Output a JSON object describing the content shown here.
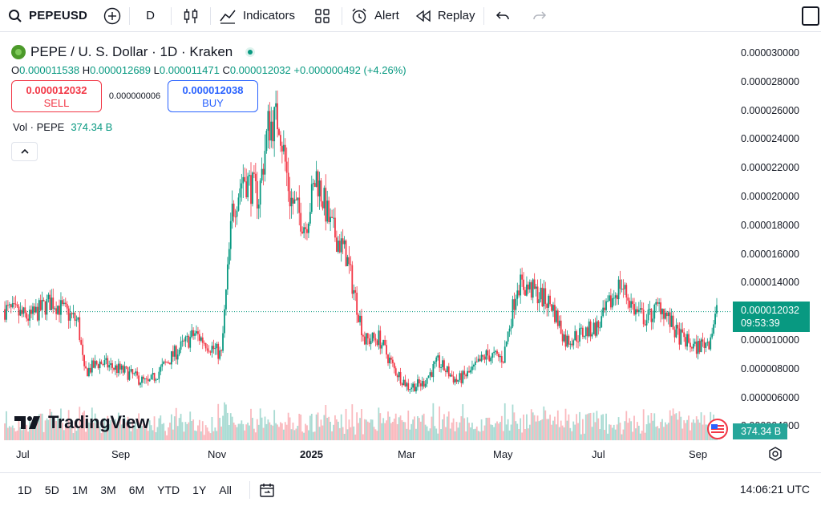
{
  "toolbar": {
    "symbol": "PEPEUSD",
    "interval": "D",
    "indicators_label": "Indicators",
    "alert_label": "Alert",
    "replay_label": "Replay"
  },
  "legend": {
    "title": "PEPE / U. S. Dollar · 1D · Kraken",
    "open_key": "O",
    "open": "0.000011538",
    "high_key": "H",
    "high": "0.000012689",
    "low_key": "L",
    "low": "0.000011471",
    "close_key": "C",
    "close": "0.000012032",
    "change": "+0.000000492 (+4.26%)"
  },
  "trade": {
    "sell_price": "0.000012032",
    "sell_label": "SELL",
    "spread": "0.000000006",
    "buy_price": "0.000012038",
    "buy_label": "BUY"
  },
  "volume": {
    "label": "Vol · PEPE",
    "value": "374.34 B"
  },
  "branding": "TradingView",
  "price_axis": {
    "ticks": [
      "0.000030000",
      "0.000028000",
      "0.000026000",
      "0.000024000",
      "0.000022000",
      "0.000020000",
      "0.000018000",
      "0.000016000",
      "0.000014000",
      "0.000010000",
      "0.000008000",
      "0.000006000",
      "0.000004000"
    ],
    "current_price": "0.000012032",
    "countdown": "09:53:39",
    "volume_tag": "374.34 B"
  },
  "time_axis": {
    "labels": [
      "Jul",
      "Sep",
      "Nov",
      "2025",
      "Mar",
      "May",
      "Jul",
      "Sep"
    ]
  },
  "bottom_bar": {
    "ranges": [
      "1D",
      "5D",
      "1M",
      "3M",
      "6M",
      "YTD",
      "1Y",
      "All"
    ],
    "clock": "14:06:21 UTC"
  },
  "colors": {
    "up": "#089981",
    "down": "#f23645",
    "accent": "#2962ff"
  },
  "chart_data": {
    "type": "candlestick",
    "series_name": "PEPEUSD",
    "x": [
      "2024-06-15",
      "2024-07-01",
      "2024-07-15",
      "2024-08-01",
      "2024-08-05",
      "2024-08-15",
      "2024-09-01",
      "2024-09-15",
      "2024-10-01",
      "2024-10-15",
      "2024-11-01",
      "2024-11-08",
      "2024-11-15",
      "2024-11-25",
      "2024-12-01",
      "2024-12-08",
      "2024-12-15",
      "2024-12-25",
      "2025-01-01",
      "2025-01-10",
      "2025-01-20",
      "2025-02-01",
      "2025-02-10",
      "2025-02-20",
      "2025-03-01",
      "2025-03-10",
      "2025-03-20",
      "2025-04-01",
      "2025-04-10",
      "2025-04-20",
      "2025-05-01",
      "2025-05-10",
      "2025-05-20",
      "2025-06-01",
      "2025-06-10",
      "2025-06-20",
      "2025-07-01",
      "2025-07-15",
      "2025-07-25",
      "2025-08-01",
      "2025-08-10",
      "2025-08-20",
      "2025-09-01",
      "2025-09-10",
      "2025-09-15"
    ],
    "y": [
      1.22e-05,
      1.16e-05,
      1.28e-05,
      1.13e-05,
      7.8e-06,
      8.5e-06,
      7.8e-06,
      7e-06,
      9e-06,
      1.05e-05,
      9e-06,
      1.9e-05,
      2.15e-05,
      2e-05,
      2.5e-05,
      2.55e-05,
      2e-05,
      1.8e-05,
      2.15e-05,
      1.8e-05,
      1.6e-05,
      1e-05,
      1.02e-05,
      8e-06,
      6.8e-06,
      7e-06,
      8.5e-06,
      7.2e-06,
      7.8e-06,
      9e-06,
      8.8e-06,
      1.4e-05,
      1.35e-05,
      1.25e-05,
      1e-05,
      1.05e-05,
      1.1e-05,
      1.4e-05,
      1.2e-05,
      1.15e-05,
      1.25e-05,
      1.05e-05,
      9.5e-06,
      1e-05,
      1.2e-05
    ],
    "ylim": [
      3e-06,
      3.05e-05
    ],
    "current": 1.2032e-05
  }
}
